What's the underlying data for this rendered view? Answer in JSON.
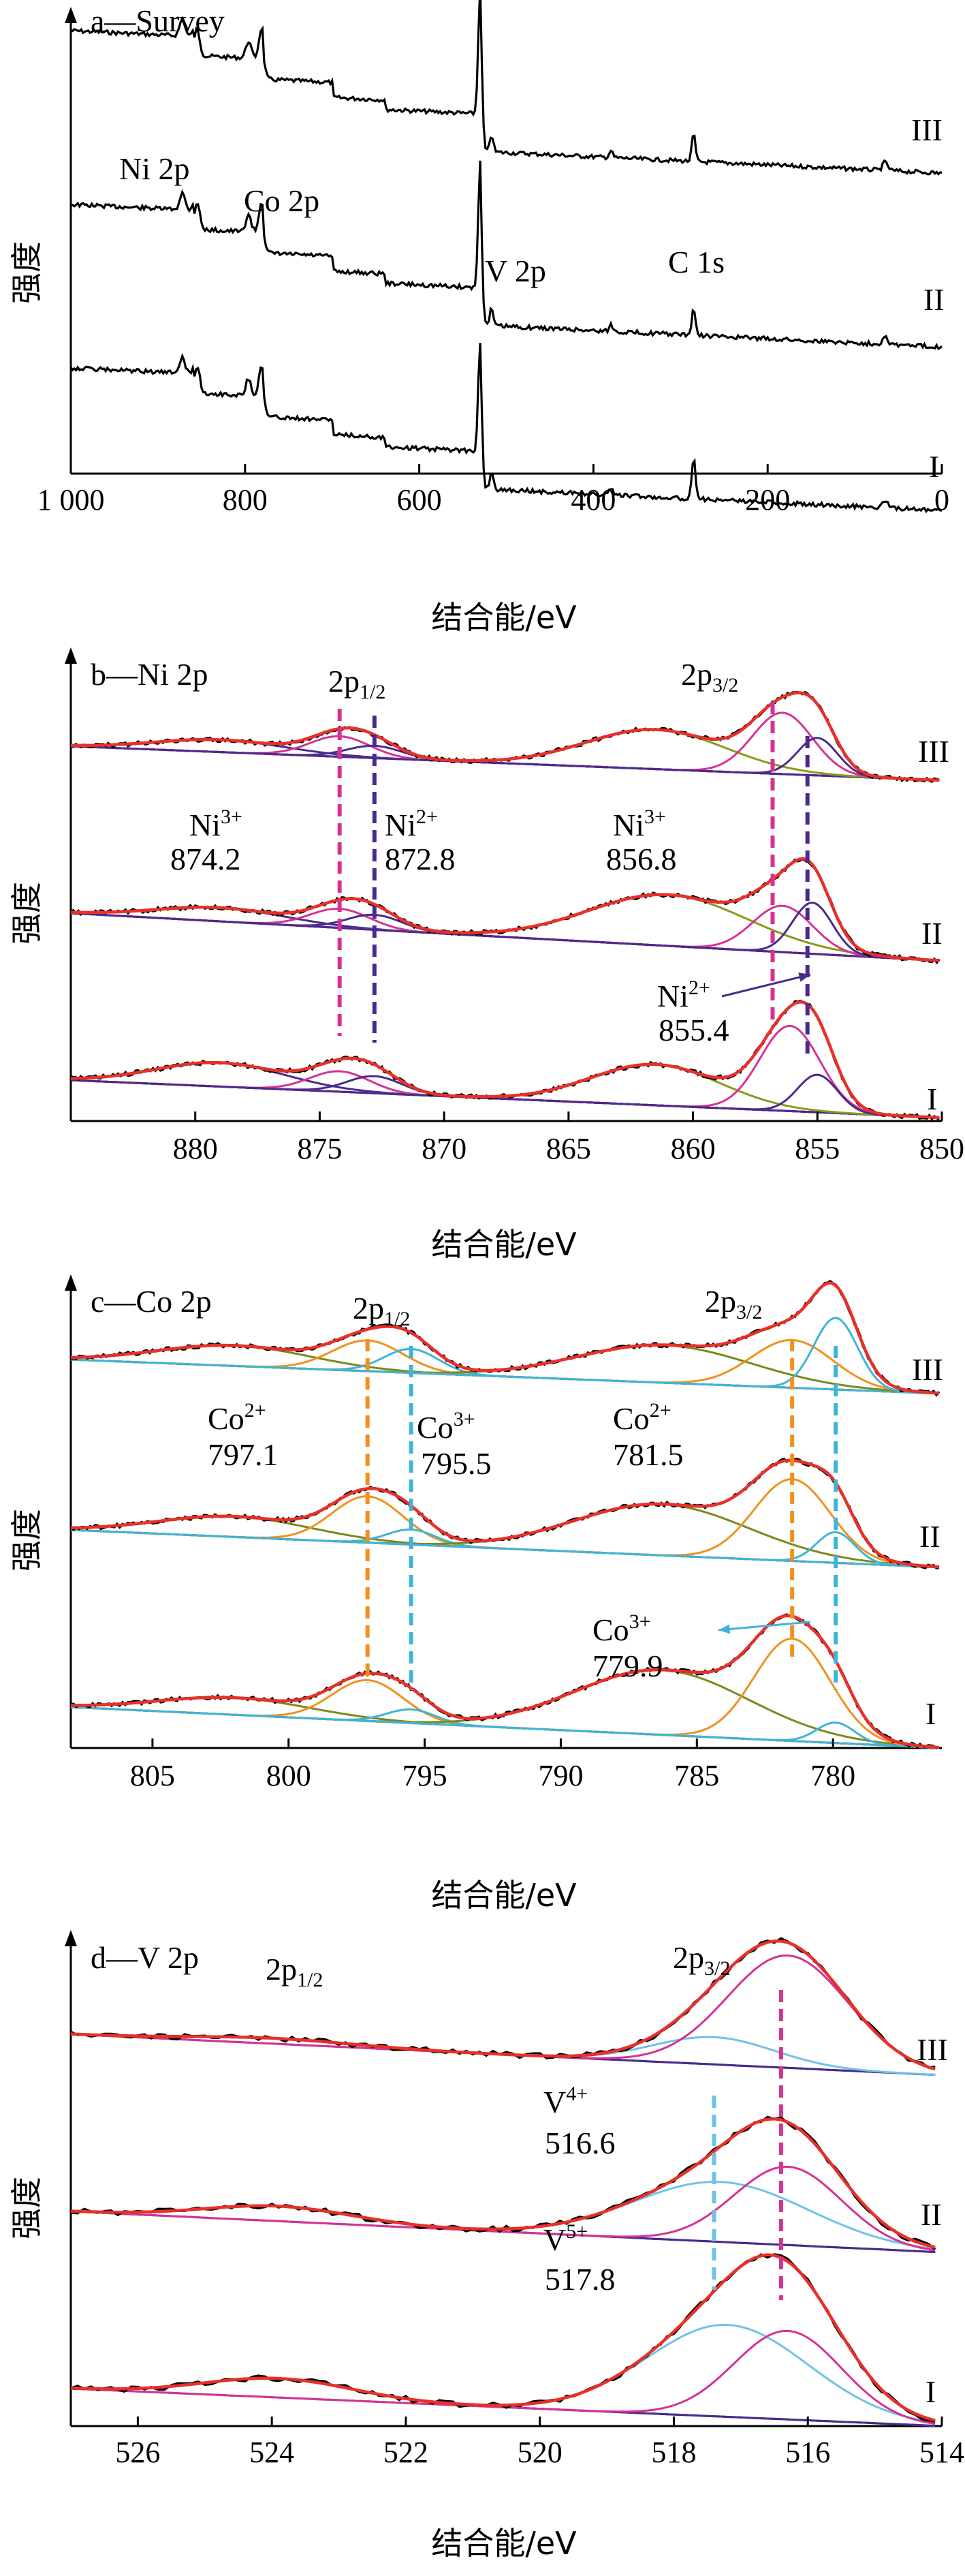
{
  "figure": {
    "ylabel": "强度",
    "xlabel": "结合能/eV"
  },
  "colors": {
    "raw": "#000000",
    "envelope": "#e8302a",
    "background": "#4b2a8e",
    "ni3": "#d63293",
    "ni2": "#4b2a8e",
    "sat": "#8a9a1a",
    "co2": "#f0911e",
    "co3": "#3fb4d8",
    "v5": "#d63293",
    "v4": "#6ec3e6",
    "co_sat": "#7a8a1c"
  },
  "chart_data": [
    {
      "id": "a",
      "type": "line",
      "title": "a—Survey",
      "xlabel": "结合能/eV",
      "ylabel": "强度",
      "xlim": [
        1000,
        0
      ],
      "xticks": [
        1000,
        800,
        600,
        400,
        200,
        0
      ],
      "xticklabels": [
        "1 000",
        "800",
        "600",
        "400",
        "200",
        "0"
      ],
      "series": [
        {
          "name": "III"
        },
        {
          "name": "II"
        },
        {
          "name": "I"
        }
      ],
      "annotations": [
        "Ni 2p",
        "Co 2p",
        "V 2p",
        "C 1s"
      ],
      "peaks_eV": {
        "Ni 2p": 855,
        "Co 2p": 781,
        "O 1s": 530,
        "V 2p": 517,
        "C 1s": 285
      }
    },
    {
      "id": "b",
      "type": "line",
      "title": "b—Ni 2p",
      "xlabel": "结合能/eV",
      "ylabel": "强度",
      "xlim": [
        885,
        850
      ],
      "xticks": [
        880,
        875,
        870,
        865,
        860,
        855,
        850
      ],
      "series": [
        {
          "name": "III"
        },
        {
          "name": "II"
        },
        {
          "name": "I"
        }
      ],
      "annotations": [
        {
          "label": "2p1/2",
          "main": "2p",
          "sub": "1/2"
        },
        {
          "label": "2p3/2",
          "main": "2p",
          "sub": "3/2"
        },
        {
          "species": "Ni",
          "charge": "3+",
          "value": "874.2",
          "x": 874.2
        },
        {
          "species": "Ni",
          "charge": "2+",
          "value": "872.8",
          "x": 872.8
        },
        {
          "species": "Ni",
          "charge": "3+",
          "value": "856.8",
          "x": 856.8
        },
        {
          "species": "Ni",
          "charge": "2+",
          "value": "855.4",
          "x": 855.4
        }
      ]
    },
    {
      "id": "c",
      "type": "line",
      "title": "c—Co 2p",
      "xlabel": "结合能/eV",
      "ylabel": "强度",
      "xlim": [
        808,
        776
      ],
      "xticks": [
        805,
        800,
        795,
        790,
        785,
        780
      ],
      "series": [
        {
          "name": "III"
        },
        {
          "name": "II"
        },
        {
          "name": "I"
        }
      ],
      "annotations": [
        {
          "label": "2p1/2",
          "main": "2p",
          "sub": "1/2"
        },
        {
          "label": "2p3/2",
          "main": "2p",
          "sub": "3/2"
        },
        {
          "species": "Co",
          "charge": "2+",
          "value": "797.1",
          "x": 797.1
        },
        {
          "species": "Co",
          "charge": "3+",
          "value": "795.5",
          "x": 795.5
        },
        {
          "species": "Co",
          "charge": "2+",
          "value": "781.5",
          "x": 781.5
        },
        {
          "species": "Co",
          "charge": "3+",
          "value": "779.9",
          "x": 779.9
        }
      ]
    },
    {
      "id": "d",
      "type": "line",
      "title": "d—V 2p",
      "xlabel": "结合能/eV",
      "ylabel": "强度",
      "xlim": [
        527,
        514
      ],
      "xticks": [
        526,
        524,
        522,
        520,
        518,
        516,
        514
      ],
      "series": [
        {
          "name": "III"
        },
        {
          "name": "II"
        },
        {
          "name": "I"
        }
      ],
      "annotations": [
        {
          "label": "2p1/2",
          "main": "2p",
          "sub": "1/2"
        },
        {
          "label": "2p3/2",
          "main": "2p",
          "sub": "3/2"
        },
        {
          "species": "V",
          "charge": "4+",
          "value": "516.6",
          "x": 516.6
        },
        {
          "species": "V",
          "charge": "5+",
          "value": "517.8",
          "x": 517.8
        }
      ]
    }
  ]
}
